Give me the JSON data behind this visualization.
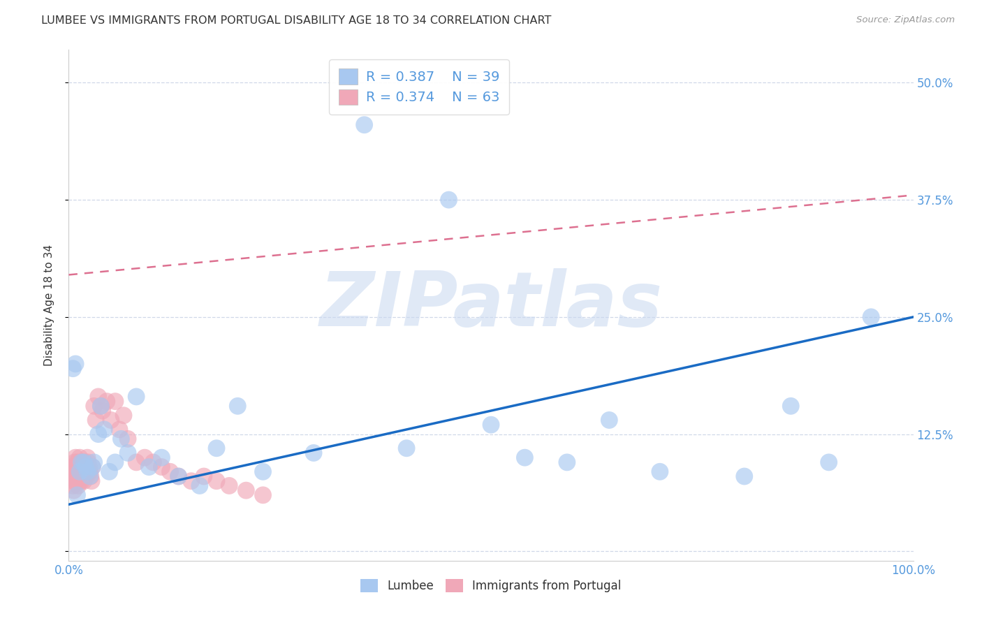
{
  "title": "LUMBEE VS IMMIGRANTS FROM PORTUGAL DISABILITY AGE 18 TO 34 CORRELATION CHART",
  "source": "Source: ZipAtlas.com",
  "ylabel": "Disability Age 18 to 34",
  "xlim": [
    0.0,
    1.0
  ],
  "ylim": [
    -0.01,
    0.535
  ],
  "xticks": [
    0.0,
    0.25,
    0.5,
    0.75,
    1.0
  ],
  "xticklabels": [
    "0.0%",
    "",
    "",
    "",
    "100.0%"
  ],
  "yticks": [
    0.0,
    0.125,
    0.25,
    0.375,
    0.5
  ],
  "yticklabels_right": [
    "",
    "12.5%",
    "25.0%",
    "37.5%",
    "50.0%"
  ],
  "lumbee_R": 0.387,
  "lumbee_N": 39,
  "portugal_R": 0.374,
  "portugal_N": 63,
  "lumbee_color": "#a8c8f0",
  "portugal_color": "#f0a8b8",
  "lumbee_line_color": "#1a6bc4",
  "portugal_line_color": "#dd7090",
  "watermark": "ZIPatlas",
  "watermark_color": "#c8d8f0",
  "background_color": "#ffffff",
  "tick_label_color": "#5599dd",
  "grid_color": "#d0d8e8",
  "title_color": "#333333",
  "source_color": "#999999",
  "ylabel_color": "#333333",
  "lumbee_x": [
    0.005,
    0.008,
    0.01,
    0.013,
    0.015,
    0.018,
    0.02,
    0.022,
    0.025,
    0.028,
    0.03,
    0.035,
    0.038,
    0.042,
    0.048,
    0.055,
    0.062,
    0.07,
    0.08,
    0.095,
    0.11,
    0.13,
    0.155,
    0.175,
    0.2,
    0.23,
    0.29,
    0.35,
    0.4,
    0.45,
    0.5,
    0.54,
    0.59,
    0.64,
    0.7,
    0.8,
    0.855,
    0.9,
    0.95
  ],
  "lumbee_y": [
    0.195,
    0.2,
    0.06,
    0.085,
    0.095,
    0.095,
    0.09,
    0.085,
    0.08,
    0.09,
    0.095,
    0.125,
    0.155,
    0.13,
    0.085,
    0.095,
    0.12,
    0.105,
    0.165,
    0.09,
    0.1,
    0.08,
    0.07,
    0.11,
    0.155,
    0.085,
    0.105,
    0.455,
    0.11,
    0.375,
    0.135,
    0.1,
    0.095,
    0.14,
    0.085,
    0.08,
    0.155,
    0.095,
    0.25
  ],
  "portugal_x": [
    0.003,
    0.004,
    0.005,
    0.005,
    0.006,
    0.006,
    0.007,
    0.007,
    0.008,
    0.008,
    0.009,
    0.009,
    0.01,
    0.01,
    0.011,
    0.011,
    0.012,
    0.012,
    0.013,
    0.013,
    0.014,
    0.014,
    0.015,
    0.015,
    0.016,
    0.016,
    0.017,
    0.017,
    0.018,
    0.018,
    0.019,
    0.02,
    0.021,
    0.022,
    0.023,
    0.024,
    0.025,
    0.026,
    0.027,
    0.028,
    0.03,
    0.032,
    0.035,
    0.038,
    0.04,
    0.045,
    0.05,
    0.055,
    0.06,
    0.065,
    0.07,
    0.08,
    0.09,
    0.1,
    0.11,
    0.12,
    0.13,
    0.145,
    0.16,
    0.175,
    0.19,
    0.21,
    0.23
  ],
  "portugal_y": [
    0.08,
    0.085,
    0.09,
    0.07,
    0.075,
    0.065,
    0.085,
    0.095,
    0.08,
    0.1,
    0.09,
    0.075,
    0.085,
    0.095,
    0.08,
    0.07,
    0.075,
    0.09,
    0.085,
    0.1,
    0.095,
    0.08,
    0.085,
    0.075,
    0.09,
    0.095,
    0.085,
    0.08,
    0.075,
    0.09,
    0.095,
    0.085,
    0.08,
    0.1,
    0.095,
    0.09,
    0.085,
    0.08,
    0.075,
    0.09,
    0.155,
    0.14,
    0.165,
    0.155,
    0.15,
    0.16,
    0.14,
    0.16,
    0.13,
    0.145,
    0.12,
    0.095,
    0.1,
    0.095,
    0.09,
    0.085,
    0.08,
    0.075,
    0.08,
    0.075,
    0.07,
    0.065,
    0.06
  ],
  "lumbee_trend_x0": 0.0,
  "lumbee_trend_y0": 0.05,
  "lumbee_trend_x1": 1.0,
  "lumbee_trend_y1": 0.25,
  "portugal_trend_x0": 0.0,
  "portugal_trend_y0": 0.295,
  "portugal_trend_x1": 1.0,
  "portugal_trend_y1": 0.38
}
